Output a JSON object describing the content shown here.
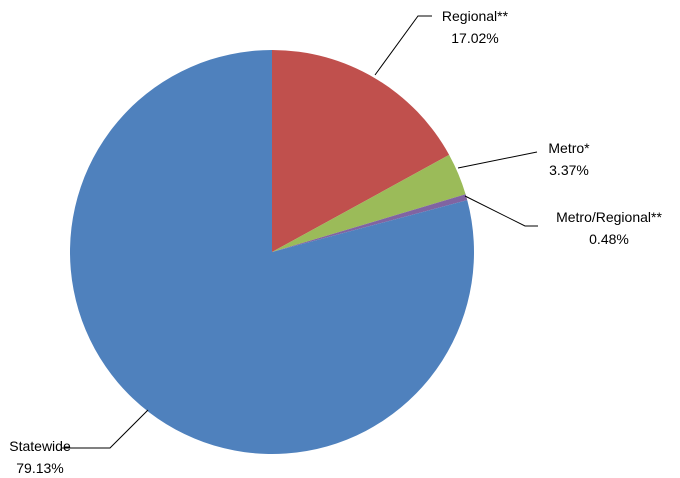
{
  "chart_data": {
    "type": "pie",
    "title": "",
    "slices": [
      {
        "label": "Regional**",
        "value_text": "17.02%",
        "value": 17.02,
        "color": "#C0504D"
      },
      {
        "label": "Metro*",
        "value_text": "3.37%",
        "value": 3.37,
        "color": "#9BBB59"
      },
      {
        "label": "Metro/Regional**",
        "value_text": "0.48%",
        "value": 0.48,
        "color": "#8064A2"
      },
      {
        "label": "Statewide",
        "value_text": "79.13%",
        "value": 79.13,
        "color": "#4F81BD"
      }
    ],
    "start_angle": "12 o'clock",
    "direction": "clockwise",
    "legend": "none"
  }
}
